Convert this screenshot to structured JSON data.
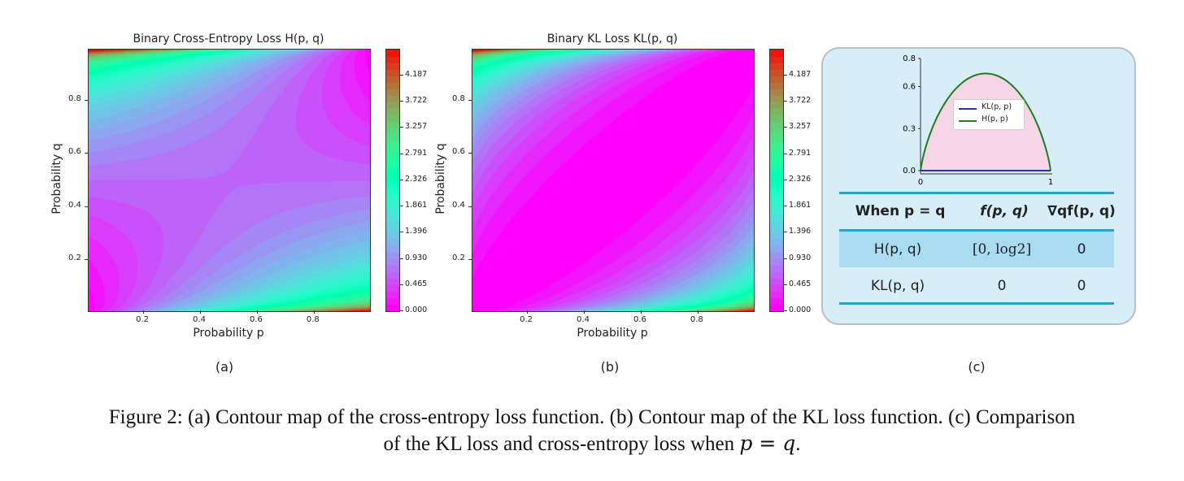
{
  "panel_a": {
    "title": "Binary Cross-Entropy Loss H(p, q)",
    "xlabel": "Probability p",
    "ylabel": "Probability q",
    "xticks": [
      "0.2",
      "0.4",
      "0.6",
      "0.8"
    ],
    "yticks": [
      "0.2",
      "0.4",
      "0.6",
      "0.8"
    ],
    "colorbar_ticks": [
      "0.000",
      "0.465",
      "0.930",
      "1.396",
      "1.861",
      "2.326",
      "2.791",
      "3.257",
      "3.722",
      "4.187"
    ],
    "sublabel": "(a)"
  },
  "panel_b": {
    "title": "Binary KL Loss KL(p, q)",
    "xlabel": "Probability p",
    "ylabel": "Probability q",
    "xticks": [
      "0.2",
      "0.4",
      "0.6",
      "0.8"
    ],
    "yticks": [
      "0.2",
      "0.4",
      "0.6",
      "0.8"
    ],
    "colorbar_ticks": [
      "0.000",
      "0.465",
      "0.930",
      "1.396",
      "1.861",
      "2.326",
      "2.791",
      "3.257",
      "3.722",
      "4.187"
    ],
    "sublabel": "(b)"
  },
  "panel_c": {
    "sublabel": "(c)",
    "mini_chart": {
      "yticks": [
        "0.0",
        "0.3",
        "0.6",
        "0.8"
      ],
      "xticks": [
        "0",
        "1"
      ],
      "legend": [
        "KL(p, p)",
        "H(p, p)"
      ],
      "colors": {
        "kl": "#1f2fd6",
        "h": "#1b7f1b",
        "fill": "#f6d6e6"
      }
    },
    "table": {
      "headers": [
        "When p = q",
        "f(p, q)",
        "∇qf(p, q)"
      ],
      "rows": [
        [
          "H(p, q)",
          "[0, log2]",
          "0"
        ],
        [
          "KL(p, q)",
          "0",
          "0"
        ]
      ]
    }
  },
  "chart_data": [
    {
      "type": "heatmap",
      "title": "Binary Cross-Entropy Loss H(p, q)",
      "xlabel": "Probability p",
      "ylabel": "Probability q",
      "xlim": [
        0,
        1
      ],
      "ylim": [
        0,
        1
      ],
      "colorbar_range": [
        0,
        4.65
      ],
      "colorbar_ticks": [
        0.0,
        0.465,
        0.93,
        1.396,
        1.861,
        2.326,
        2.791,
        3.257,
        3.722,
        4.187
      ],
      "function": "-p*log(q)-(1-p)*log(1-q)"
    },
    {
      "type": "heatmap",
      "title": "Binary KL Loss KL(p, q)",
      "xlabel": "Probability p",
      "ylabel": "Probability q",
      "xlim": [
        0,
        1
      ],
      "ylim": [
        0,
        1
      ],
      "colorbar_range": [
        0,
        4.65
      ],
      "colorbar_ticks": [
        0.0,
        0.465,
        0.93,
        1.396,
        1.861,
        2.326,
        2.791,
        3.257,
        3.722,
        4.187
      ],
      "function": "p*log(p/q)+(1-p)*log((1-p)/(1-q))"
    },
    {
      "type": "line",
      "x_range": [
        0,
        1
      ],
      "ylim": [
        0,
        0.8
      ],
      "series": [
        {
          "name": "KL(p, p)",
          "values_rule": "0 for all p"
        },
        {
          "name": "H(p, p)",
          "values_rule": "-p*log(p)-(1-p)*log(1-p)",
          "max": 0.693
        }
      ]
    }
  ],
  "caption": {
    "line1": "Figure 2: (a) Contour map of the cross-entropy loss function. (b) Contour map of the KL loss function. (c) Comparison",
    "line2_prefix": "of the KL loss and cross-entropy loss when ",
    "line2_math": "p = q",
    "line2_suffix": "."
  }
}
